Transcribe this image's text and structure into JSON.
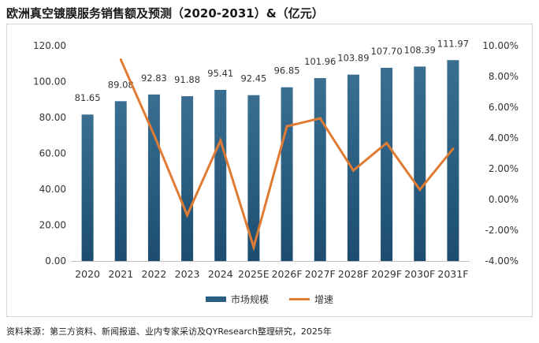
{
  "title": "欧洲真空镀膜服务销售额及预测（2020-2031）&（亿元）",
  "legend": {
    "bar_label": "市场规模",
    "line_label": "增速"
  },
  "source": "资料来源：第三方资料、新闻报道、业内专家采访及QYResearch整理研究，2025年",
  "colors": {
    "bar_top": "#3a6f92",
    "bar_bottom": "#1c4d70",
    "line": "#e07b33",
    "text": "#333333"
  },
  "chart_data": {
    "type": "bar+line",
    "categories": [
      "2020",
      "2021",
      "2022",
      "2023",
      "2024",
      "2025E",
      "2026F",
      "2027F",
      "2028F",
      "2029F",
      "2030F",
      "2031F"
    ],
    "series": [
      {
        "name": "市场规模",
        "type": "bar",
        "axis": "left",
        "values": [
          81.65,
          89.08,
          92.83,
          91.88,
          95.41,
          92.45,
          96.85,
          101.96,
          103.89,
          107.7,
          108.39,
          111.97
        ],
        "labels": [
          "81.65",
          "89.08",
          "92.83",
          "91.88",
          "95.41",
          "92.45",
          "96.85",
          "101.96",
          "103.89",
          "107.70",
          "108.39",
          "111.97"
        ]
      },
      {
        "name": "增速",
        "type": "line",
        "axis": "right",
        "values": [
          null,
          9.1,
          4.21,
          -1.02,
          3.84,
          -3.1,
          4.76,
          5.28,
          1.89,
          3.67,
          0.64,
          3.3
        ]
      }
    ],
    "y_left": {
      "min": 0,
      "max": 120,
      "step": 20,
      "ticks": [
        "0.00",
        "20.00",
        "40.00",
        "60.00",
        "80.00",
        "100.00",
        "120.00"
      ]
    },
    "y_right": {
      "min": -4,
      "max": 10,
      "step": 2,
      "ticks": [
        "-4.00%",
        "-2.00%",
        "0.00%",
        "2.00%",
        "4.00%",
        "6.00%",
        "8.00%",
        "10.00%"
      ]
    }
  }
}
